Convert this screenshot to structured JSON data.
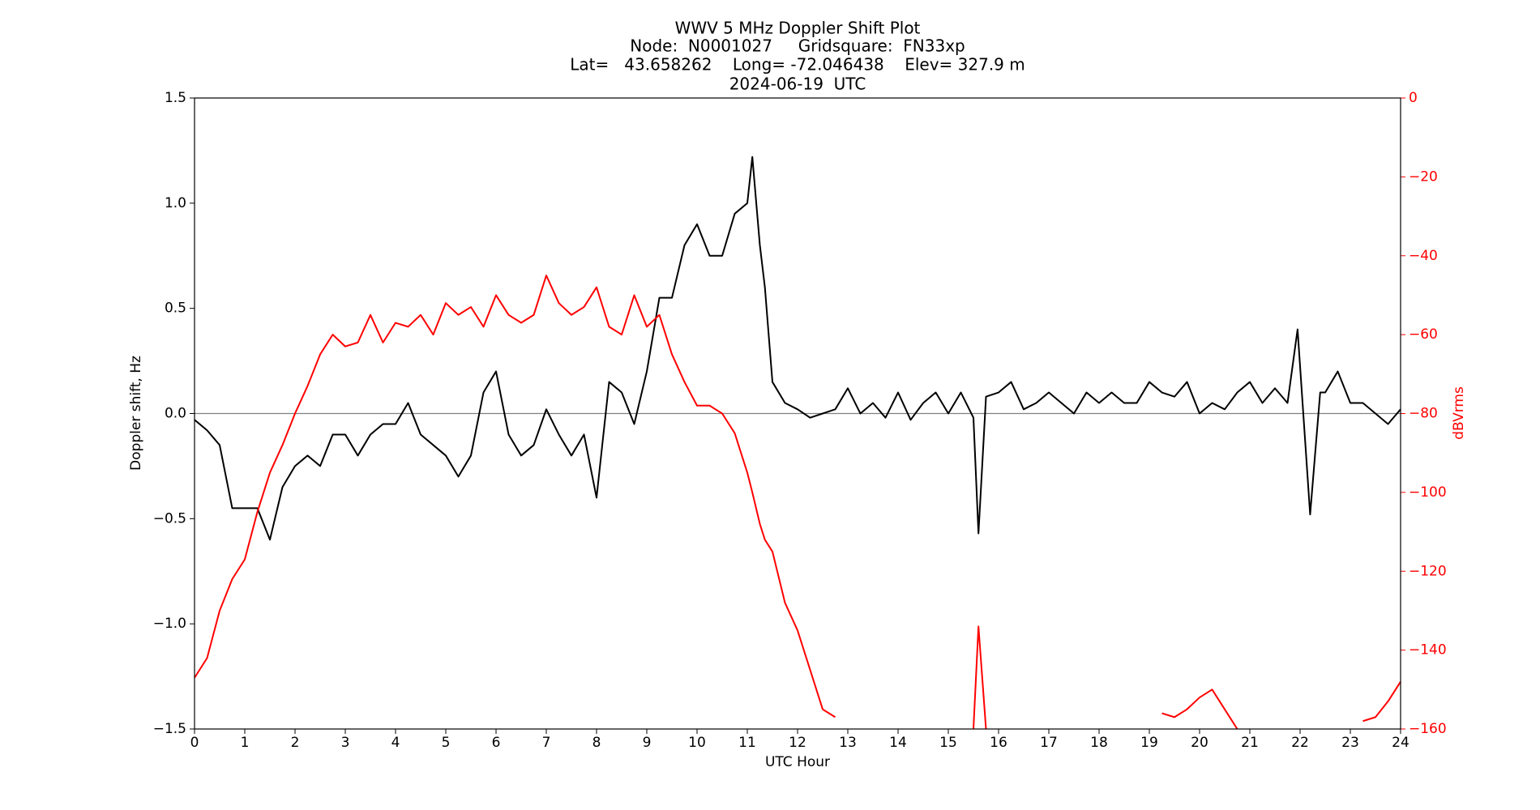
{
  "chart_data": {
    "type": "line",
    "title": "WWV 5 MHz Doppler Shift Plot",
    "subtitle": [
      "Node:  N0001027     Gridsquare:  FN33xp",
      "Lat=   43.658262    Long= -72.046438    Elev= 327.9 m",
      "2024-06-19  UTC"
    ],
    "xlabel": "UTC Hour",
    "ylabel": "Doppler shift, Hz",
    "y2label": "dBVrms",
    "x": [
      0,
      0.25,
      0.5,
      0.75,
      1,
      1.25,
      1.5,
      1.75,
      2,
      2.25,
      2.5,
      2.75,
      3,
      3.25,
      3.5,
      3.75,
      4,
      4.25,
      4.5,
      4.75,
      5,
      5.25,
      5.5,
      5.75,
      6,
      6.25,
      6.5,
      6.75,
      7,
      7.25,
      7.5,
      7.75,
      8,
      8.25,
      8.5,
      8.75,
      9,
      9.25,
      9.5,
      9.75,
      10,
      10.25,
      10.5,
      10.75,
      11,
      11.1,
      11.25,
      11.35,
      11.5,
      11.75,
      12,
      12.25,
      12.5,
      12.75,
      13,
      13.25,
      13.5,
      13.75,
      14,
      14.25,
      14.5,
      14.75,
      15,
      15.25,
      15.5,
      15.6,
      15.75,
      16,
      16.25,
      16.5,
      16.75,
      17,
      17.25,
      17.5,
      17.75,
      18,
      18.25,
      18.5,
      18.75,
      19,
      19.25,
      19.5,
      19.75,
      20,
      20.25,
      20.5,
      20.75,
      21,
      21.25,
      21.5,
      21.75,
      21.95,
      22.2,
      22.4,
      22.5,
      22.75,
      23,
      23.25,
      23.5,
      23.75,
      24
    ],
    "series": [
      {
        "color": "#000000",
        "values": [
          -0.03,
          -0.08,
          -0.15,
          -0.45,
          -0.45,
          -0.45,
          -0.6,
          -0.35,
          -0.25,
          -0.2,
          -0.25,
          -0.1,
          -0.1,
          -0.2,
          -0.1,
          -0.05,
          -0.05,
          0.05,
          -0.1,
          -0.15,
          -0.2,
          -0.3,
          -0.2,
          0.1,
          0.2,
          -0.1,
          -0.2,
          -0.15,
          0.02,
          -0.1,
          -0.2,
          -0.1,
          -0.4,
          0.15,
          0.1,
          -0.05,
          0.2,
          0.55,
          0.55,
          0.8,
          0.9,
          0.75,
          0.75,
          0.95,
          1.0,
          1.22,
          0.8,
          0.6,
          0.15,
          0.05,
          0.02,
          -0.02,
          0.0,
          0.02,
          0.12,
          0.0,
          0.05,
          -0.02,
          0.1,
          -0.03,
          0.05,
          0.1,
          0.0,
          0.1,
          -0.02,
          -0.57,
          0.08,
          0.1,
          0.15,
          0.02,
          0.05,
          0.1,
          0.05,
          0.0,
          0.1,
          0.05,
          0.1,
          0.05,
          0.05,
          0.15,
          0.1,
          0.08,
          0.15,
          0.0,
          0.05,
          0.02,
          0.1,
          0.15,
          0.05,
          0.12,
          0.05,
          0.4,
          -0.48,
          0.1,
          0.1,
          0.2,
          0.05,
          0.05,
          0.0,
          -0.05,
          0.02
        ]
      },
      {
        "color": "#ff0000",
        "axis": "y2",
        "values": [
          -147,
          -142,
          -130,
          -122,
          -117,
          -105,
          -95,
          -88,
          -80,
          -73,
          -65,
          -60,
          -63,
          -62,
          -55,
          -62,
          -57,
          -58,
          -55,
          -60,
          -52,
          -55,
          -53,
          -58,
          -50,
          -55,
          -57,
          -55,
          -45,
          -52,
          -55,
          -53,
          -48,
          -58,
          -60,
          -50,
          -58,
          -55,
          -65,
          -72,
          -78,
          -78,
          -80,
          -85,
          -95,
          -100,
          -108,
          -112,
          -115,
          -128,
          -135,
          -145,
          -155,
          -157,
          null,
          null,
          null,
          null,
          null,
          null,
          null,
          null,
          null,
          null,
          -160,
          -134,
          -160,
          null,
          null,
          null,
          null,
          null,
          null,
          null,
          null,
          null,
          null,
          null,
          null,
          null,
          -156,
          -157,
          -155,
          -152,
          -150,
          -155,
          -160,
          null,
          null,
          null,
          null,
          null,
          null,
          null,
          null,
          null,
          null,
          -158,
          -157,
          -153,
          -148
        ]
      }
    ],
    "xlim": [
      0,
      24
    ],
    "xticks": [
      0,
      1,
      2,
      3,
      4,
      5,
      6,
      7,
      8,
      9,
      10,
      11,
      12,
      13,
      14,
      15,
      16,
      17,
      18,
      19,
      20,
      21,
      22,
      23,
      24
    ],
    "ylim": [
      -1.5,
      1.5
    ],
    "yticks": [
      {
        "value": -1.5,
        "label": "−1.5"
      },
      {
        "value": -1.0,
        "label": "−1.0"
      },
      {
        "value": -0.5,
        "label": "−0.5"
      },
      {
        "value": 0,
        "label": "0.0"
      },
      {
        "value": 0.5,
        "label": "0.5"
      },
      {
        "value": 1.0,
        "label": "1.0"
      },
      {
        "value": 1.5,
        "label": "1.5"
      }
    ],
    "y2lim": [
      -160,
      0
    ],
    "y2ticks": [
      {
        "value": -160,
        "label": "−160"
      },
      {
        "value": -140,
        "label": "−140"
      },
      {
        "value": -120,
        "label": "−120"
      },
      {
        "value": -100,
        "label": "−100"
      },
      {
        "value": -80,
        "label": "−80"
      },
      {
        "value": -60,
        "label": "−60"
      },
      {
        "value": -40,
        "label": "−40"
      },
      {
        "value": -20,
        "label": "−20"
      },
      0
    ],
    "y2color": "#ff0000",
    "zero_line": true
  }
}
